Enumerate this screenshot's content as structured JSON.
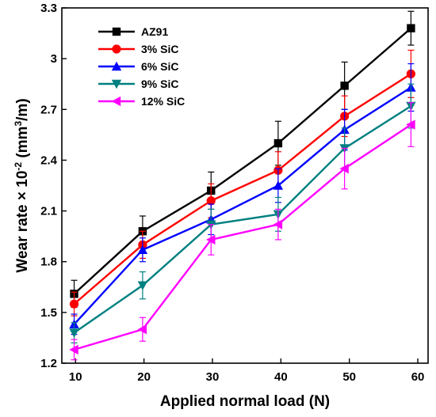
{
  "chart_data": {
    "type": "line",
    "title": "",
    "xlabel": "Applied normal load (N)",
    "ylabel_main": "Wear rate × 10",
    "ylabel_exp": "-2",
    "ylabel_unit": " (mm",
    "ylabel_unit_exp": "3",
    "ylabel_unit_end": "/m)",
    "xlim": [
      8,
      61.5
    ],
    "ylim": [
      1.2,
      3.3
    ],
    "x_ticks": [
      10,
      20,
      30,
      40,
      50,
      60
    ],
    "y_ticks": [
      1.2,
      1.5,
      1.8,
      2.1,
      2.4,
      2.7,
      3,
      3.3
    ],
    "y_tick_labels": [
      "1.2",
      "1.5",
      "1.8",
      "2.1",
      "2.4",
      "2.7",
      "3",
      "3.3"
    ],
    "legend_position": "top-left",
    "series": [
      {
        "name": "AZ91",
        "color": "#000000",
        "marker": "square",
        "x": [
          9.8,
          19.8,
          29.8,
          39.6,
          49.3,
          59
        ],
        "y": [
          1.61,
          1.98,
          2.22,
          2.5,
          2.84,
          3.18
        ],
        "err": [
          0.08,
          0.09,
          0.11,
          0.13,
          0.14,
          0.1
        ]
      },
      {
        "name": "3% SiC",
        "color": "#ff0000",
        "marker": "circle",
        "x": [
          9.8,
          19.8,
          29.8,
          39.6,
          49.3,
          59
        ],
        "y": [
          1.55,
          1.9,
          2.16,
          2.34,
          2.66,
          2.91
        ],
        "err": [
          0.07,
          0.08,
          0.1,
          0.11,
          0.12,
          0.14
        ]
      },
      {
        "name": "6% SiC",
        "color": "#0000ff",
        "marker": "triangle-up",
        "x": [
          9.8,
          19.8,
          29.8,
          39.6,
          49.3,
          59
        ],
        "y": [
          1.43,
          1.87,
          2.05,
          2.25,
          2.58,
          2.83
        ],
        "err": [
          0.06,
          0.07,
          0.09,
          0.1,
          0.12,
          0.14
        ]
      },
      {
        "name": "9% SiC",
        "color": "#008080",
        "marker": "triangle-down",
        "x": [
          9.8,
          19.8,
          29.8,
          39.6,
          49.3,
          59
        ],
        "y": [
          1.38,
          1.66,
          2.02,
          2.08,
          2.47,
          2.72
        ],
        "err": [
          0.06,
          0.08,
          0.09,
          0.1,
          0.12,
          0.13
        ]
      },
      {
        "name": "12% SiC",
        "color": "#ff00ff",
        "marker": "triangle-left",
        "x": [
          9.8,
          19.8,
          29.8,
          39.6,
          49.3,
          59
        ],
        "y": [
          1.28,
          1.4,
          1.93,
          2.02,
          2.35,
          2.61
        ],
        "err": [
          0.06,
          0.07,
          0.09,
          0.09,
          0.12,
          0.13
        ]
      }
    ]
  }
}
